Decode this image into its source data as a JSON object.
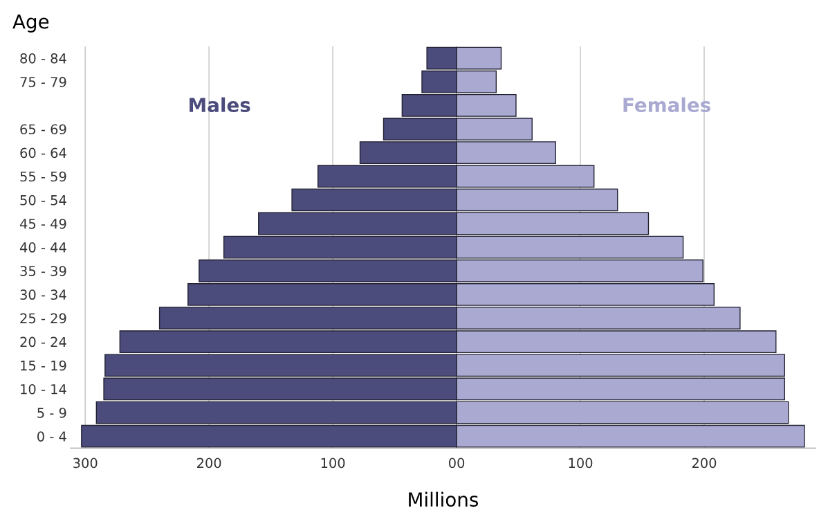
{
  "chart_data": {
    "type": "bar",
    "orientation": "horizontal",
    "stacked": true,
    "ylabel": "Age",
    "xlabel": "Millions",
    "categories": [
      "80 - 84",
      "75 - 79",
      null,
      "65 - 69",
      "60 - 64",
      "55 - 59",
      "50 - 54",
      "45 - 49",
      "40 - 44",
      "35 - 39",
      "30 - 34",
      "25 - 29",
      "20 - 24",
      "15 - 19",
      "10 - 14",
      "5 - 9",
      "0 - 4"
    ],
    "series": [
      {
        "name": "Males",
        "color": "#4b4b7c",
        "values": [
          -24,
          -28,
          -44,
          -59,
          -78,
          -112,
          -133,
          -160,
          -188,
          -208,
          -217,
          -240,
          -272,
          -284,
          -285,
          -291,
          -303
        ]
      },
      {
        "name": "Females",
        "color": "#a9a9d2",
        "values": [
          36,
          32,
          48,
          61,
          80,
          111,
          130,
          155,
          183,
          199,
          208,
          229,
          258,
          265,
          265,
          268,
          281
        ]
      }
    ],
    "xlim": [
      -312,
      290
    ],
    "xticks": [
      {
        "value": -300,
        "label": "300"
      },
      {
        "value": -200,
        "label": "200"
      },
      {
        "value": -100,
        "label": "100"
      },
      {
        "value": 0,
        "label": "00"
      },
      {
        "value": 100,
        "label": "100"
      },
      {
        "value": 200,
        "label": "200"
      }
    ],
    "grid": "x",
    "legend": false
  }
}
